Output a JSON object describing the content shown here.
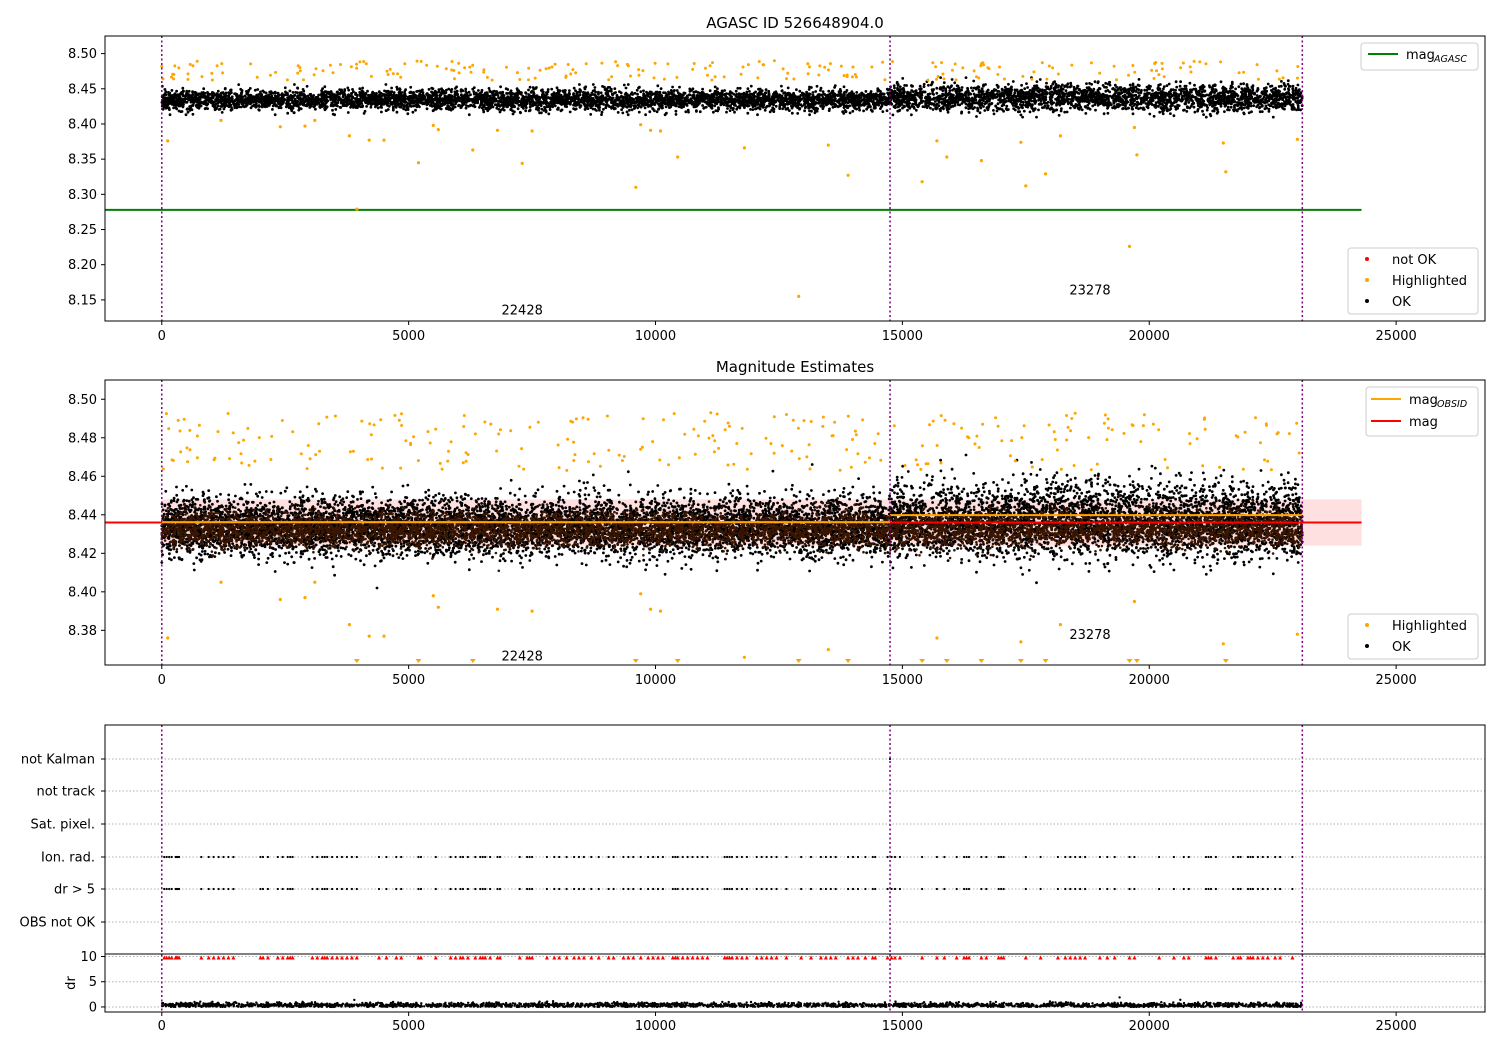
{
  "chart_data": [
    {
      "type": "scatter",
      "title": "AGASC ID 526648904.0",
      "xlim": [
        -1150,
        26800
      ],
      "ylim": [
        8.12,
        8.525
      ],
      "xticks": [
        0,
        5000,
        10000,
        15000,
        20000,
        25000
      ],
      "yticks": [
        8.15,
        8.2,
        8.25,
        8.3,
        8.35,
        8.4,
        8.45,
        8.5
      ],
      "vlines": [
        0,
        14750,
        23100
      ],
      "obsid_labels": [
        {
          "text": "22428",
          "x": 7300,
          "y": 8.135
        },
        {
          "text": "23278",
          "x": 18800,
          "y": 8.163
        }
      ],
      "mag_agasc": {
        "value": 8.278,
        "x_range": [
          -1150,
          24300
        ]
      },
      "ok_band": [
        {
          "x0": 0,
          "x1": 14750,
          "center": 8.434,
          "halfwidth": 0.013
        },
        {
          "x0": 14750,
          "x1": 23100,
          "center": 8.437,
          "halfwidth": 0.017
        }
      ],
      "highlighted_upper": {
        "min": 8.462,
        "max": 8.49
      },
      "highlighted_low": [
        [
          120,
          8.376
        ],
        [
          1200,
          8.405
        ],
        [
          2400,
          8.396
        ],
        [
          2900,
          8.397
        ],
        [
          3100,
          8.405
        ],
        [
          3800,
          8.383
        ],
        [
          3950,
          8.279
        ],
        [
          4200,
          8.377
        ],
        [
          4500,
          8.377
        ],
        [
          5200,
          8.345
        ],
        [
          5500,
          8.398
        ],
        [
          5600,
          8.392
        ],
        [
          6300,
          8.363
        ],
        [
          6800,
          8.391
        ],
        [
          7300,
          8.344
        ],
        [
          7500,
          8.39
        ],
        [
          9600,
          8.31
        ],
        [
          9700,
          8.399
        ],
        [
          9900,
          8.391
        ],
        [
          10100,
          8.39
        ],
        [
          10450,
          8.353
        ],
        [
          11800,
          8.366
        ],
        [
          12900,
          8.155
        ],
        [
          13500,
          8.37
        ],
        [
          13900,
          8.327
        ],
        [
          15400,
          8.318
        ],
        [
          15700,
          8.376
        ],
        [
          15900,
          8.353
        ],
        [
          16600,
          8.348
        ],
        [
          17400,
          8.374
        ],
        [
          17500,
          8.312
        ],
        [
          17900,
          8.329
        ],
        [
          18200,
          8.383
        ],
        [
          19600,
          8.226
        ],
        [
          19700,
          8.395
        ],
        [
          19750,
          8.356
        ],
        [
          21500,
          8.373
        ],
        [
          21550,
          8.332
        ],
        [
          23000,
          8.378
        ]
      ],
      "legends": {
        "top_right": [
          {
            "label": "mag",
            "subscript": "AGASC",
            "color": "#008000"
          }
        ],
        "bottom_right": [
          {
            "label": "not OK",
            "color": "#ff0000"
          },
          {
            "label": "Highlighted",
            "color": "#ffa500"
          },
          {
            "label": "OK",
            "color": "#000000"
          }
        ]
      }
    },
    {
      "type": "scatter",
      "title": "Magnitude Estimates",
      "xlim": [
        -1150,
        26800
      ],
      "ylim": [
        8.362,
        8.51
      ],
      "xticks": [
        0,
        5000,
        10000,
        15000,
        20000,
        25000
      ],
      "yticks": [
        8.38,
        8.4,
        8.42,
        8.44,
        8.46,
        8.48,
        8.5
      ],
      "vlines": [
        0,
        14750,
        23100
      ],
      "obsid_labels": [
        {
          "text": "22428",
          "x": 7300,
          "y": 8.3665
        },
        {
          "text": "23278",
          "x": 18800,
          "y": 8.3775
        }
      ],
      "mag": {
        "value": 8.436,
        "x_range": [
          -1150,
          24300
        ],
        "band": [
          8.424,
          8.448
        ]
      },
      "mag_obsid": [
        {
          "x0": 0,
          "x1": 14750,
          "value": 8.4362
        },
        {
          "x0": 14750,
          "x1": 23100,
          "value": 8.4398
        }
      ],
      "clipped_low_x": [
        3950,
        5200,
        6300,
        9600,
        10450,
        12900,
        13900,
        15400,
        15900,
        16600,
        17400,
        17900,
        19600,
        19750,
        21550
      ],
      "legends": {
        "top_right": [
          {
            "label": "mag",
            "subscript": "OBSID",
            "color": "#ffa500"
          },
          {
            "label": "mag",
            "subscript": "",
            "color": "#ff0000"
          }
        ],
        "bottom_right": [
          {
            "label": "Highlighted",
            "color": "#ffa500"
          },
          {
            "label": "OK",
            "color": "#000000"
          }
        ]
      }
    },
    {
      "type": "scatter",
      "title": "",
      "xlim": [
        -1150,
        26800
      ],
      "flag_rows": [
        "not Kalman",
        "not track",
        "Sat. pixel.",
        "Ion. rad.",
        "dr > 5",
        "OBS not OK"
      ],
      "vlines": [
        0,
        14750,
        23100
      ],
      "flag_x": [
        50,
        100,
        150,
        200,
        280,
        300,
        320,
        350,
        800,
        950,
        1050,
        1150,
        1250,
        1350,
        1450,
        2000,
        2050,
        2150,
        2350,
        2450,
        2550,
        2600,
        2650,
        3050,
        3150,
        3250,
        3300,
        3350,
        3450,
        3550,
        3650,
        3750,
        3850,
        3950,
        4400,
        4550,
        4750,
        4850,
        5200,
        5250,
        5550,
        5850,
        5950,
        6050,
        6100,
        6200,
        6350,
        6450,
        6500,
        6550,
        6650,
        6800,
        6850,
        7250,
        7400,
        7450,
        7500,
        7800,
        7950,
        8050,
        8200,
        8350,
        8450,
        8550,
        8700,
        8850,
        9050,
        9150,
        9350,
        9450,
        9550,
        9700,
        9850,
        9950,
        10050,
        10150,
        10350,
        10400,
        10450,
        10550,
        10650,
        10750,
        10850,
        10950,
        11050,
        11400,
        11450,
        11500,
        11550,
        11650,
        11750,
        11850,
        12050,
        12150,
        12250,
        12350,
        12450,
        12650,
        12950,
        13150,
        13350,
        13450,
        13550,
        13650,
        13900,
        14000,
        14100,
        14250,
        14400,
        14450,
        14700,
        14780,
        14850,
        14950,
        15400,
        15700,
        15850,
        16100,
        16250,
        16300,
        16350,
        16600,
        16700,
        16950,
        17000,
        17050,
        17500,
        17800,
        18150,
        18300,
        18400,
        18500,
        18600,
        18700,
        19000,
        19150,
        19300,
        19600,
        19700,
        20200,
        20500,
        20700,
        20800,
        21150,
        21200,
        21250,
        21350,
        21700,
        21800,
        21850,
        22000,
        22050,
        22100,
        22200,
        22300,
        22400,
        22550,
        22650,
        22900
      ],
      "flagged_rows": [
        "Ion. rad.",
        "dr > 5"
      ],
      "not_kalman_x": [
        14750
      ],
      "dr": {
        "ylabel": "dr",
        "yticks": [
          0,
          5,
          10
        ],
        "ylim": [
          -1,
          10.5
        ],
        "baseline": 0.35,
        "threshold_marker_value": 9.8
      }
    }
  ]
}
